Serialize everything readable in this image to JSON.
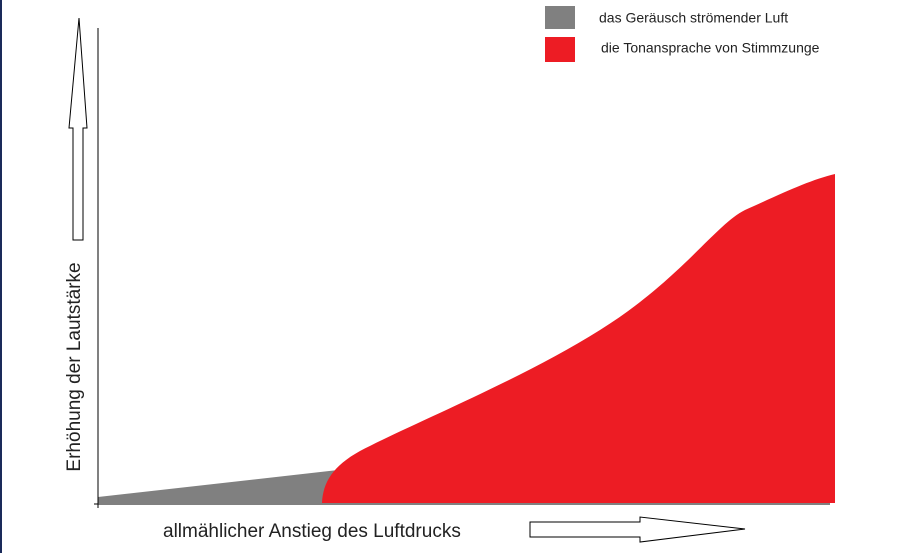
{
  "legend": {
    "items": [
      {
        "label": "das Geräusch strömender Luft",
        "color": "#808080"
      },
      {
        "label": "die Tonansprache von Stimmzunge",
        "color": "#ed1c24"
      }
    ]
  },
  "axes": {
    "y_label": "Erhöhung der Lautstärke",
    "x_label": "allmählicher Anstieg des Luftdrucks"
  }
}
